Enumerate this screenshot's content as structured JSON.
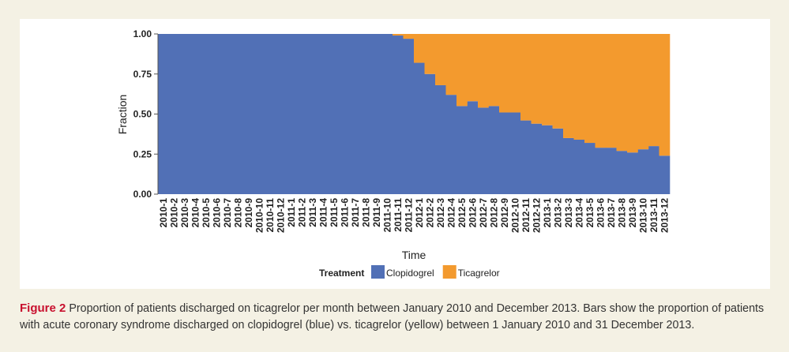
{
  "chart_data": {
    "type": "bar",
    "stacked": true,
    "x_label": "Time",
    "y_label": "Fraction",
    "legend_title": "Treatment",
    "categories": [
      "2010-1",
      "2010-2",
      "2010-3",
      "2010-4",
      "2010-5",
      "2010-6",
      "2010-7",
      "2010-8",
      "2010-9",
      "2010-10",
      "2010-11",
      "2010-12",
      "2011-1",
      "2011-2",
      "2011-3",
      "2011-4",
      "2011-5",
      "2011-6",
      "2011-7",
      "2011-8",
      "2011-9",
      "2011-10",
      "2011-11",
      "2011-12",
      "2012-1",
      "2012-2",
      "2012-3",
      "2012-4",
      "2012-5",
      "2012-6",
      "2012-7",
      "2012-8",
      "2012-9",
      "2012-10",
      "2012-11",
      "2012-12",
      "2013-1",
      "2013-2",
      "2013-3",
      "2013-4",
      "2013-5",
      "2013-6",
      "2013-7",
      "2013-8",
      "2013-9",
      "2013-10",
      "2013-11",
      "2013-12"
    ],
    "series": [
      {
        "name": "Clopidogrel",
        "color": "#5170b6",
        "values": [
          1,
          1,
          1,
          1,
          1,
          1,
          1,
          1,
          1,
          1,
          1,
          1,
          1,
          1,
          1,
          1,
          1,
          1,
          1,
          1,
          1,
          1,
          0.99,
          0.97,
          0.82,
          0.75,
          0.68,
          0.62,
          0.55,
          0.58,
          0.54,
          0.55,
          0.51,
          0.51,
          0.46,
          0.44,
          0.43,
          0.41,
          0.35,
          0.34,
          0.32,
          0.29,
          0.29,
          0.27,
          0.26,
          0.28,
          0.3,
          0.24
        ]
      },
      {
        "name": "Ticagrelor",
        "color": "#f39a2e",
        "values": [
          0,
          0,
          0,
          0,
          0,
          0,
          0,
          0,
          0,
          0,
          0,
          0,
          0,
          0,
          0,
          0,
          0,
          0,
          0,
          0,
          0,
          0,
          0.01,
          0.03,
          0.18,
          0.25,
          0.32,
          0.38,
          0.45,
          0.42,
          0.46,
          0.45,
          0.49,
          0.49,
          0.54,
          0.56,
          0.57,
          0.59,
          0.65,
          0.66,
          0.68,
          0.71,
          0.71,
          0.73,
          0.74,
          0.72,
          0.7,
          0.76
        ]
      }
    ],
    "ylim": [
      0,
      1
    ],
    "yticks": [
      {
        "value": 0,
        "label": "0.00"
      },
      {
        "value": 0.25,
        "label": "0.25"
      },
      {
        "value": 0.5,
        "label": "0.50"
      },
      {
        "value": 0.75,
        "label": "0.75"
      },
      {
        "value": 1,
        "label": "1.00"
      }
    ]
  },
  "caption": {
    "label": "Figure 2",
    "text": "Proportion of patients discharged on ticagrelor per month between January 2010 and December 2013. Bars show the proportion of patients with acute coronary syndrome discharged on clopidogrel (blue) vs. ticagrelor (yellow) between 1 January 2010 and 31 December 2013."
  }
}
